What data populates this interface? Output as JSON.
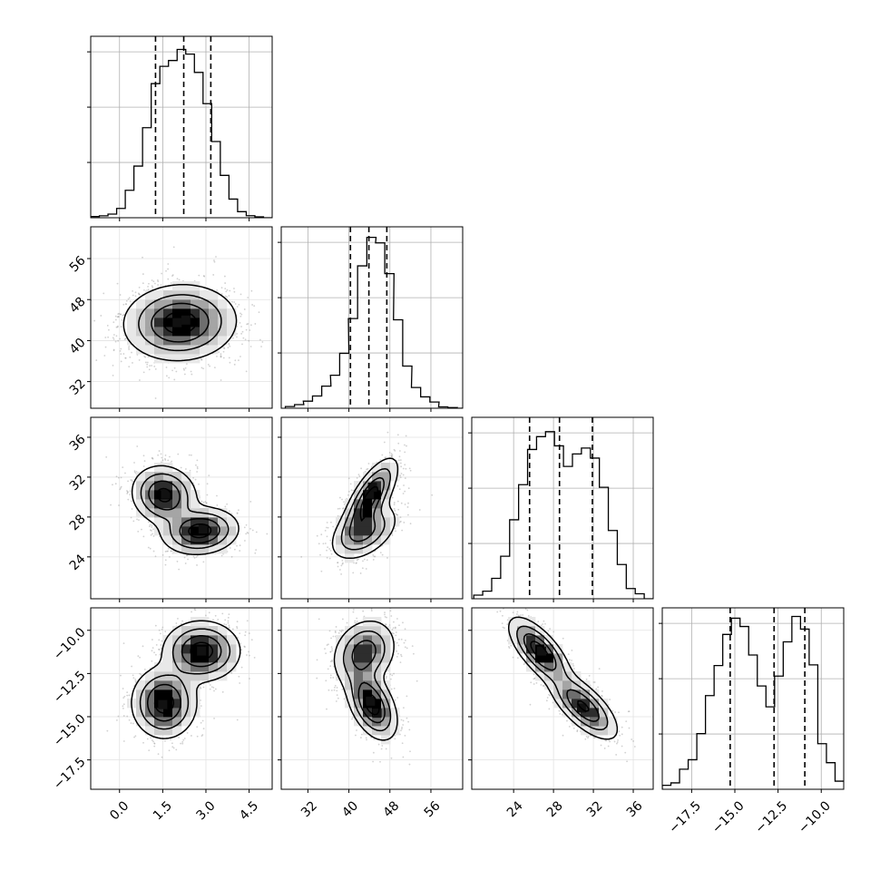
{
  "chart_data": {
    "type": "corner",
    "grid": true,
    "colors": {
      "line": "#000000",
      "grid": "#b0b0b0",
      "scatter": "#9a9a9a"
    },
    "parameters": [
      {
        "id": "p1",
        "range": [
          -1.0,
          5.3
        ],
        "ticks": [
          0.0,
          1.5,
          3.0,
          4.5
        ],
        "tick_labels": [
          "0.0",
          "1.5",
          "3.0",
          "4.5"
        ],
        "quantiles": [
          1.25,
          2.23,
          3.17
        ],
        "hist": {
          "x": [
            -1.0,
            -0.7,
            -0.4,
            -0.1,
            0.2,
            0.5,
            0.8,
            1.1,
            1.4,
            1.7,
            2.0,
            2.3,
            2.6,
            2.9,
            3.2,
            3.5,
            3.8,
            4.1,
            4.4,
            4.7,
            5.0
          ],
          "y": [
            0.007,
            0.011,
            0.021,
            0.054,
            0.159,
            0.299,
            0.521,
            0.776,
            0.876,
            0.91,
            0.974,
            0.947,
            0.841,
            0.66,
            0.441,
            0.245,
            0.108,
            0.035,
            0.012,
            0.005,
            0.0
          ]
        }
      },
      {
        "id": "p2",
        "range": [
          26.8,
          62.2
        ],
        "ticks": [
          32,
          40,
          48,
          56
        ],
        "tick_labels": [
          "32",
          "40",
          "48",
          "56"
        ],
        "quantiles": [
          40.3,
          43.9,
          47.4
        ],
        "hist": {
          "x": [
            27.6,
            29.4,
            31.1,
            32.9,
            34.7,
            36.4,
            38.2,
            39.9,
            41.7,
            43.5,
            45.2,
            47.0,
            48.7,
            50.5,
            52.2,
            54.0,
            55.8,
            57.5,
            59.3,
            61.0
          ],
          "y": [
            0.01,
            0.021,
            0.041,
            0.071,
            0.128,
            0.191,
            0.318,
            0.519,
            0.824,
            0.989,
            0.957,
            0.779,
            0.512,
            0.244,
            0.12,
            0.066,
            0.036,
            0.008,
            0.004,
            0.0
          ]
        }
      },
      {
        "id": "p3",
        "range": [
          19.8,
          38.0
        ],
        "ticks": [
          24,
          28,
          32,
          36
        ],
        "tick_labels": [
          "24",
          "28",
          "32",
          "36"
        ],
        "quantiles": [
          25.6,
          28.6,
          31.9
        ],
        "hist": {
          "x": [
            20.0,
            20.9,
            21.8,
            22.7,
            23.6,
            24.5,
            25.4,
            26.3,
            27.2,
            28.1,
            29.0,
            29.9,
            30.8,
            31.7,
            32.6,
            33.5,
            34.4,
            35.3,
            36.2,
            37.1
          ],
          "y": [
            0.021,
            0.044,
            0.118,
            0.246,
            0.457,
            0.66,
            0.864,
            0.938,
            0.967,
            0.885,
            0.766,
            0.838,
            0.872,
            0.814,
            0.645,
            0.395,
            0.198,
            0.059,
            0.029,
            0.0
          ]
        }
      },
      {
        "id": "p4",
        "range": [
          -19.2,
          -8.7
        ],
        "ticks": [
          -17.5,
          -15.0,
          -12.5,
          -10.0
        ],
        "tick_labels": [
          "−17.5",
          "−15.0",
          "−12.5",
          "−10.0"
        ],
        "quantiles": [
          -15.27,
          -12.73,
          -10.95
        ],
        "hist": {
          "x": [
            -19.2,
            -18.7,
            -18.2,
            -17.7,
            -17.2,
            -16.7,
            -16.2,
            -15.7,
            -15.2,
            -14.7,
            -14.2,
            -13.7,
            -13.2,
            -12.7,
            -12.2,
            -11.7,
            -11.2,
            -10.7,
            -10.2,
            -9.7,
            -9.2
          ],
          "y": [
            0.023,
            0.037,
            0.116,
            0.171,
            0.322,
            0.542,
            0.716,
            0.896,
            0.99,
            0.942,
            0.777,
            0.598,
            0.477,
            0.655,
            0.853,
            1.0,
            0.927,
            0.72,
            0.264,
            0.154,
            0.047
          ]
        }
      }
    ],
    "pairs": [
      {
        "x": "p1",
        "y": "p2",
        "components": [
          {
            "mx": 2.1,
            "my": 43.5,
            "sx": 0.95,
            "sy": 3.6,
            "rho": 0.05,
            "w": 1.0
          }
        ],
        "hot": [
          [
            2.0,
            43.5
          ],
          [
            2.3,
            44.0
          ]
        ]
      },
      {
        "x": "p1",
        "y": "p3",
        "components": [
          {
            "mx": 1.55,
            "my": 30.2,
            "sx": 0.55,
            "sy": 1.45,
            "rho": -0.1,
            "w": 0.5
          },
          {
            "mx": 2.8,
            "my": 26.6,
            "sx": 0.65,
            "sy": 1.15,
            "rho": 0.1,
            "w": 0.5
          }
        ],
        "hot": [
          [
            1.6,
            30.3
          ],
          [
            2.9,
            26.8
          ]
        ]
      },
      {
        "x": "p2",
        "y": "p3",
        "components": [
          {
            "mx": 44.2,
            "my": 30.0,
            "sx": 2.6,
            "sy": 1.9,
            "rho": 0.72,
            "w": 0.55
          },
          {
            "mx": 43.0,
            "my": 26.5,
            "sx": 3.2,
            "sy": 1.4,
            "rho": 0.45,
            "w": 0.45
          }
        ],
        "hot": [
          [
            44.0,
            30.3
          ],
          [
            44.6,
            31.0
          ]
        ]
      },
      {
        "x": "p1",
        "y": "p4",
        "components": [
          {
            "mx": 2.85,
            "my": -11.2,
            "sx": 0.65,
            "sy": 0.85,
            "rho": 0.0,
            "w": 0.5
          },
          {
            "mx": 1.55,
            "my": -14.2,
            "sx": 0.55,
            "sy": 1.0,
            "rho": 0.0,
            "w": 0.5
          }
        ],
        "hot": [
          [
            2.85,
            -11.2
          ],
          [
            1.5,
            -14.3
          ]
        ]
      },
      {
        "x": "p2",
        "y": "p4",
        "components": [
          {
            "mx": 43.0,
            "my": -11.3,
            "sx": 3.0,
            "sy": 0.95,
            "rho": 0.2,
            "w": 0.5
          },
          {
            "mx": 44.5,
            "my": -14.3,
            "sx": 2.4,
            "sy": 1.0,
            "rho": -0.45,
            "w": 0.5
          }
        ],
        "hot": [
          [
            44.2,
            -14.1
          ],
          [
            45.5,
            -14.8
          ]
        ]
      },
      {
        "x": "p3",
        "y": "p4",
        "components": [
          {
            "mx": 26.6,
            "my": -11.2,
            "sx": 1.5,
            "sy": 0.95,
            "rho": -0.7,
            "w": 0.5
          },
          {
            "mx": 31.0,
            "my": -14.4,
            "sx": 1.7,
            "sy": 0.95,
            "rho": -0.7,
            "w": 0.5
          }
        ],
        "hot": [
          [
            26.8,
            -11.2
          ],
          [
            30.8,
            -14.5
          ]
        ]
      }
    ]
  }
}
